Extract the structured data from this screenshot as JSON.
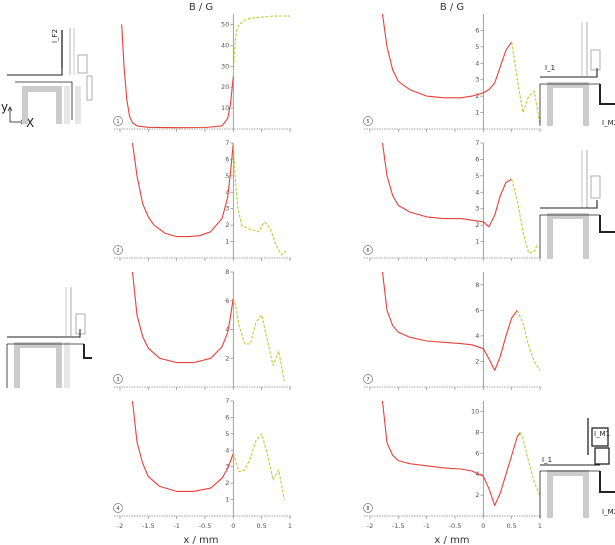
{
  "figure": {
    "y_axis_title": "B / G",
    "x_axis_title": "x / mm",
    "x_ticks": [
      "-2",
      "-1.5",
      "-1",
      "-0.5",
      "0",
      "0.5",
      "1"
    ],
    "coordinate_axes": {
      "y": "y",
      "x": "X"
    }
  },
  "colors": {
    "red_series": "#e8403a",
    "green_series": "#b8d23c",
    "axis": "#888888",
    "inset_gray": "#cccccc"
  },
  "insets": [
    {
      "id": "top-left",
      "labels": [
        "I_F2"
      ]
    },
    {
      "id": "right-1",
      "labels": [
        "I_1",
        "I_M2"
      ]
    },
    {
      "id": "right-2",
      "labels": []
    },
    {
      "id": "left-3",
      "labels": []
    },
    {
      "id": "right-4",
      "labels": [
        "I_M1",
        "I_1",
        "I_M2"
      ]
    }
  ],
  "chart_data": [
    {
      "type": "line",
      "badge": "1",
      "ylim": [
        0,
        55
      ],
      "yticks": [
        10,
        20,
        30,
        40,
        50
      ],
      "series": [
        {
          "color": "red",
          "x": [
            -1.97,
            -1.93,
            -1.88,
            -1.83,
            -1.78,
            -1.7,
            -1.5,
            -1.0,
            -0.5,
            -0.2,
            -0.1,
            -0.05,
            0.0
          ],
          "y": [
            50,
            30,
            14,
            6,
            3,
            1.5,
            0.8,
            0.6,
            0.7,
            1.5,
            5,
            12,
            25
          ]
        },
        {
          "color": "green",
          "x": [
            0.0,
            0.02,
            0.05,
            0.1,
            0.2,
            0.3,
            0.5,
            0.7,
            0.9,
            1.0
          ],
          "y": [
            25,
            38,
            46,
            50,
            52,
            53,
            53.5,
            54,
            54,
            54
          ]
        }
      ]
    },
    {
      "type": "line",
      "badge": "2",
      "ylim": [
        0,
        7
      ],
      "yticks": [
        1,
        2,
        3,
        4,
        5,
        6,
        7
      ],
      "series": [
        {
          "color": "red",
          "x": [
            -1.78,
            -1.7,
            -1.6,
            -1.5,
            -1.4,
            -1.2,
            -1.0,
            -0.8,
            -0.6,
            -0.4,
            -0.2,
            -0.1,
            -0.05,
            0.0
          ],
          "y": [
            7.0,
            5.0,
            3.3,
            2.5,
            2.0,
            1.5,
            1.3,
            1.3,
            1.35,
            1.6,
            2.4,
            3.7,
            5.2,
            7.0
          ]
        },
        {
          "color": "green",
          "x": [
            0.0,
            0.03,
            0.08,
            0.15,
            0.25,
            0.35,
            0.45,
            0.55,
            0.65,
            0.75,
            0.85,
            0.95
          ],
          "y": [
            7.0,
            5.0,
            3.0,
            2.0,
            1.8,
            1.7,
            1.6,
            2.2,
            1.8,
            0.8,
            0.2,
            0.5
          ]
        }
      ]
    },
    {
      "type": "line",
      "badge": "3",
      "ylim": [
        0,
        8
      ],
      "yticks": [
        2,
        4,
        6,
        8
      ],
      "series": [
        {
          "color": "red",
          "x": [
            -1.78,
            -1.7,
            -1.6,
            -1.5,
            -1.3,
            -1.0,
            -0.7,
            -0.4,
            -0.2,
            -0.1,
            -0.05,
            0.0
          ],
          "y": [
            8.0,
            5.0,
            3.5,
            2.7,
            2.0,
            1.7,
            1.7,
            2.0,
            2.8,
            3.8,
            4.9,
            6.2
          ]
        },
        {
          "color": "green",
          "x": [
            0.0,
            0.05,
            0.1,
            0.2,
            0.3,
            0.4,
            0.5,
            0.6,
            0.7,
            0.8,
            0.9
          ],
          "y": [
            6.2,
            5.5,
            4.3,
            3.0,
            3.0,
            4.5,
            5.0,
            3.3,
            1.5,
            2.5,
            0.4
          ]
        }
      ]
    },
    {
      "type": "line",
      "badge": "4",
      "ylim": [
        0,
        7
      ],
      "yticks": [
        1,
        2,
        3,
        4,
        5,
        6,
        7
      ],
      "series": [
        {
          "color": "red",
          "x": [
            -1.78,
            -1.7,
            -1.6,
            -1.5,
            -1.3,
            -1.0,
            -0.7,
            -0.4,
            -0.2,
            -0.1,
            0.0
          ],
          "y": [
            7.0,
            4.5,
            3.2,
            2.4,
            1.8,
            1.5,
            1.5,
            1.7,
            2.3,
            2.9,
            3.8
          ]
        },
        {
          "color": "green",
          "x": [
            0.0,
            0.05,
            0.1,
            0.2,
            0.3,
            0.4,
            0.5,
            0.6,
            0.7,
            0.8,
            0.9
          ],
          "y": [
            3.8,
            3.2,
            2.7,
            2.8,
            3.5,
            4.6,
            5.0,
            3.8,
            2.2,
            2.8,
            1.0
          ]
        }
      ]
    },
    {
      "type": "line",
      "badge": "5",
      "ylim": [
        0,
        7
      ],
      "yticks": [
        1,
        2,
        3,
        4,
        5,
        6
      ],
      "series": [
        {
          "color": "red",
          "x": [
            -1.78,
            -1.7,
            -1.6,
            -1.5,
            -1.3,
            -1.0,
            -0.7,
            -0.4,
            -0.2,
            0.0,
            0.1,
            0.2,
            0.3,
            0.4,
            0.5
          ],
          "y": [
            7.0,
            5.0,
            3.6,
            2.9,
            2.4,
            2.0,
            1.9,
            1.9,
            2.0,
            2.2,
            2.4,
            2.8,
            3.8,
            4.8,
            5.3
          ]
        },
        {
          "color": "green",
          "x": [
            0.5,
            0.6,
            0.7,
            0.8,
            0.9,
            1.0
          ],
          "y": [
            5.3,
            3.0,
            1.0,
            2.0,
            2.3,
            0.3
          ]
        }
      ]
    },
    {
      "type": "line",
      "badge": "6",
      "ylim": [
        0,
        7
      ],
      "yticks": [
        1,
        2,
        3,
        4,
        5,
        6,
        7
      ],
      "series": [
        {
          "color": "red",
          "x": [
            -1.78,
            -1.7,
            -1.6,
            -1.5,
            -1.3,
            -1.0,
            -0.7,
            -0.4,
            -0.2,
            0.0,
            0.1,
            0.2,
            0.3,
            0.4,
            0.5
          ],
          "y": [
            7.0,
            5.0,
            3.8,
            3.2,
            2.8,
            2.5,
            2.4,
            2.4,
            2.3,
            2.2,
            1.9,
            2.6,
            3.8,
            4.6,
            4.8
          ]
        },
        {
          "color": "green",
          "x": [
            0.5,
            0.6,
            0.7,
            0.8,
            0.9,
            0.95
          ],
          "y": [
            4.8,
            3.5,
            1.6,
            0.3,
            0.4,
            0.8
          ]
        }
      ]
    },
    {
      "type": "line",
      "badge": "7",
      "ylim": [
        0,
        9
      ],
      "yticks": [
        2,
        4,
        6,
        8
      ],
      "series": [
        {
          "color": "red",
          "x": [
            -1.78,
            -1.7,
            -1.6,
            -1.5,
            -1.3,
            -1.0,
            -0.7,
            -0.4,
            -0.2,
            0.0,
            0.1,
            0.2,
            0.3,
            0.4,
            0.5,
            0.6
          ],
          "y": [
            9.0,
            6.0,
            4.8,
            4.3,
            3.9,
            3.6,
            3.5,
            3.4,
            3.3,
            3.0,
            2.2,
            1.3,
            2.4,
            4.0,
            5.4,
            6.0
          ]
        },
        {
          "color": "green",
          "x": [
            0.6,
            0.7,
            0.8,
            0.9,
            1.0
          ],
          "y": [
            6.0,
            5.0,
            3.2,
            2.0,
            1.3
          ]
        }
      ]
    },
    {
      "type": "line",
      "badge": "8",
      "ylim": [
        0,
        11
      ],
      "yticks": [
        2,
        4,
        6,
        8,
        10
      ],
      "series": [
        {
          "color": "red",
          "x": [
            -1.78,
            -1.7,
            -1.6,
            -1.5,
            -1.3,
            -1.0,
            -0.7,
            -0.4,
            -0.2,
            0.0,
            0.1,
            0.2,
            0.3,
            0.4,
            0.5,
            0.6,
            0.65
          ],
          "y": [
            11.0,
            7.0,
            5.8,
            5.3,
            5.0,
            4.8,
            4.6,
            4.5,
            4.3,
            3.8,
            2.6,
            1.0,
            2.2,
            4.0,
            5.8,
            7.6,
            8.0
          ]
        },
        {
          "color": "green",
          "x": [
            0.65,
            0.7,
            0.8,
            0.9,
            1.0
          ],
          "y": [
            8.0,
            7.4,
            5.2,
            3.2,
            2.0
          ]
        }
      ]
    }
  ]
}
